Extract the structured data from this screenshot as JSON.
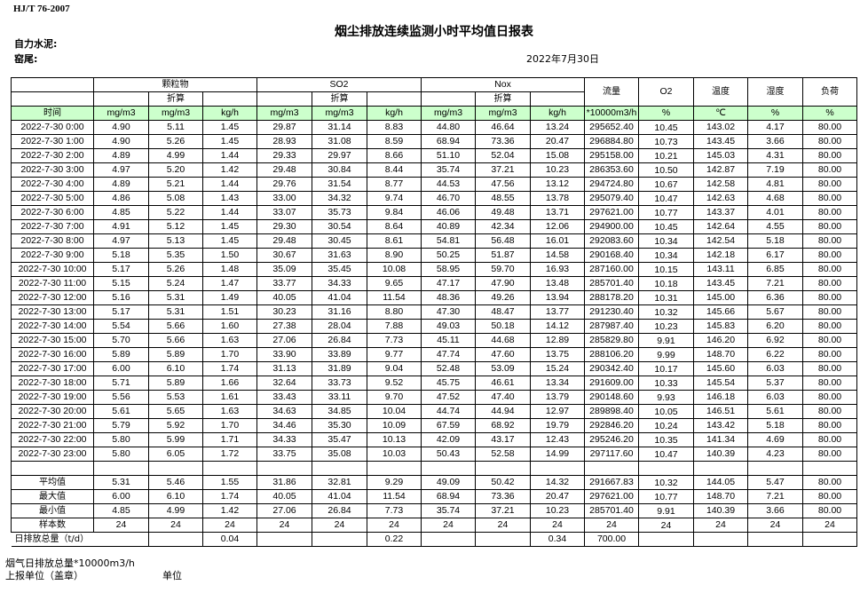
{
  "standard": "HJ/T  76-2007",
  "title": "烟尘排放连续监测小时平均值日报表",
  "company": "自力水泥:",
  "kiln": "窑尾:",
  "date": "2022年7月30日",
  "header": {
    "particulate": "颗粒物",
    "so2": "SO2",
    "nox": "Nox",
    "converted": "折算",
    "flow": "流量",
    "o2": "O2",
    "temperature": "温度",
    "humidity": "湿度",
    "load": "负荷",
    "units": [
      "时间",
      "mg/m3",
      "mg/m3",
      "kg/h",
      "mg/m3",
      "mg/m3",
      "kg/h",
      "mg/m3",
      "mg/m3",
      "kg/h",
      "*10000m3/h",
      "%",
      "℃",
      "%",
      "%"
    ]
  },
  "rows": [
    [
      "2022-7-30 0:00",
      "4.90",
      "5.11",
      "1.45",
      "29.87",
      "31.14",
      "8.83",
      "44.80",
      "46.64",
      "13.24",
      "295652.40",
      "10.45",
      "143.02",
      "4.17",
      "80.00"
    ],
    [
      "2022-7-30 1:00",
      "4.90",
      "5.26",
      "1.45",
      "28.93",
      "31.08",
      "8.59",
      "68.94",
      "73.36",
      "20.47",
      "296884.80",
      "10.73",
      "143.45",
      "3.66",
      "80.00"
    ],
    [
      "2022-7-30 2:00",
      "4.89",
      "4.99",
      "1.44",
      "29.33",
      "29.97",
      "8.66",
      "51.10",
      "52.04",
      "15.08",
      "295158.00",
      "10.21",
      "145.03",
      "4.31",
      "80.00"
    ],
    [
      "2022-7-30 3:00",
      "4.97",
      "5.20",
      "1.42",
      "29.48",
      "30.84",
      "8.44",
      "35.74",
      "37.21",
      "10.23",
      "286353.60",
      "10.50",
      "142.87",
      "7.19",
      "80.00"
    ],
    [
      "2022-7-30 4:00",
      "4.89",
      "5.21",
      "1.44",
      "29.76",
      "31.54",
      "8.77",
      "44.53",
      "47.56",
      "13.12",
      "294724.80",
      "10.67",
      "142.58",
      "4.81",
      "80.00"
    ],
    [
      "2022-7-30 5:00",
      "4.86",
      "5.08",
      "1.43",
      "33.00",
      "34.32",
      "9.74",
      "46.70",
      "48.55",
      "13.78",
      "295079.40",
      "10.47",
      "142.63",
      "4.68",
      "80.00"
    ],
    [
      "2022-7-30 6:00",
      "4.85",
      "5.22",
      "1.44",
      "33.07",
      "35.73",
      "9.84",
      "46.06",
      "49.48",
      "13.71",
      "297621.00",
      "10.77",
      "143.37",
      "4.01",
      "80.00"
    ],
    [
      "2022-7-30 7:00",
      "4.91",
      "5.12",
      "1.45",
      "29.30",
      "30.54",
      "8.64",
      "40.89",
      "42.34",
      "12.06",
      "294900.00",
      "10.45",
      "142.64",
      "4.55",
      "80.00"
    ],
    [
      "2022-7-30 8:00",
      "4.97",
      "5.13",
      "1.45",
      "29.48",
      "30.45",
      "8.61",
      "54.81",
      "56.48",
      "16.01",
      "292083.60",
      "10.34",
      "142.54",
      "5.18",
      "80.00"
    ],
    [
      "2022-7-30 9:00",
      "5.18",
      "5.35",
      "1.50",
      "30.67",
      "31.63",
      "8.90",
      "50.25",
      "51.87",
      "14.58",
      "290168.40",
      "10.34",
      "142.18",
      "6.17",
      "80.00"
    ],
    [
      "2022-7-30 10:00",
      "5.17",
      "5.26",
      "1.48",
      "35.09",
      "35.45",
      "10.08",
      "58.95",
      "59.70",
      "16.93",
      "287160.00",
      "10.15",
      "143.11",
      "6.85",
      "80.00"
    ],
    [
      "2022-7-30 11:00",
      "5.15",
      "5.24",
      "1.47",
      "33.77",
      "34.33",
      "9.65",
      "47.17",
      "47.90",
      "13.48",
      "285701.40",
      "10.18",
      "143.45",
      "7.21",
      "80.00"
    ],
    [
      "2022-7-30 12:00",
      "5.16",
      "5.31",
      "1.49",
      "40.05",
      "41.04",
      "11.54",
      "48.36",
      "49.26",
      "13.94",
      "288178.20",
      "10.31",
      "145.00",
      "6.36",
      "80.00"
    ],
    [
      "2022-7-30 13:00",
      "5.17",
      "5.31",
      "1.51",
      "30.23",
      "31.16",
      "8.80",
      "47.30",
      "48.47",
      "13.77",
      "291230.40",
      "10.32",
      "145.66",
      "5.67",
      "80.00"
    ],
    [
      "2022-7-30 14:00",
      "5.54",
      "5.66",
      "1.60",
      "27.38",
      "28.04",
      "7.88",
      "49.03",
      "50.18",
      "14.12",
      "287987.40",
      "10.23",
      "145.83",
      "6.20",
      "80.00"
    ],
    [
      "2022-7-30 15:00",
      "5.70",
      "5.66",
      "1.63",
      "27.06",
      "26.84",
      "7.73",
      "45.11",
      "44.68",
      "12.89",
      "285829.80",
      "9.91",
      "146.20",
      "6.92",
      "80.00"
    ],
    [
      "2022-7-30 16:00",
      "5.89",
      "5.89",
      "1.70",
      "33.90",
      "33.89",
      "9.77",
      "47.74",
      "47.60",
      "13.75",
      "288106.20",
      "9.99",
      "148.70",
      "6.22",
      "80.00"
    ],
    [
      "2022-7-30 17:00",
      "6.00",
      "6.10",
      "1.74",
      "31.13",
      "31.89",
      "9.04",
      "52.48",
      "53.09",
      "15.24",
      "290342.40",
      "10.17",
      "145.60",
      "6.03",
      "80.00"
    ],
    [
      "2022-7-30 18:00",
      "5.71",
      "5.89",
      "1.66",
      "32.64",
      "33.73",
      "9.52",
      "45.75",
      "46.61",
      "13.34",
      "291609.00",
      "10.33",
      "145.54",
      "5.37",
      "80.00"
    ],
    [
      "2022-7-30 19:00",
      "5.56",
      "5.53",
      "1.61",
      "33.43",
      "33.11",
      "9.70",
      "47.52",
      "47.40",
      "13.79",
      "290148.60",
      "9.93",
      "146.18",
      "6.03",
      "80.00"
    ],
    [
      "2022-7-30 20:00",
      "5.61",
      "5.65",
      "1.63",
      "34.63",
      "34.85",
      "10.04",
      "44.74",
      "44.94",
      "12.97",
      "289898.40",
      "10.05",
      "146.51",
      "5.61",
      "80.00"
    ],
    [
      "2022-7-30 21:00",
      "5.79",
      "5.92",
      "1.70",
      "34.46",
      "35.30",
      "10.09",
      "67.59",
      "68.92",
      "19.79",
      "292846.20",
      "10.24",
      "143.42",
      "5.18",
      "80.00"
    ],
    [
      "2022-7-30 22:00",
      "5.80",
      "5.99",
      "1.71",
      "34.33",
      "35.47",
      "10.13",
      "42.09",
      "43.17",
      "12.43",
      "295246.20",
      "10.35",
      "141.34",
      "4.69",
      "80.00"
    ],
    [
      "2022-7-30 23:00",
      "5.80",
      "6.05",
      "1.72",
      "33.75",
      "35.08",
      "10.03",
      "50.43",
      "52.58",
      "14.99",
      "297117.60",
      "10.47",
      "140.39",
      "4.23",
      "80.00"
    ]
  ],
  "summary": [
    [
      "平均值",
      "5.31",
      "5.46",
      "1.55",
      "31.86",
      "32.81",
      "9.29",
      "49.09",
      "50.42",
      "14.32",
      "291667.83",
      "10.32",
      "144.05",
      "5.47",
      "80.00"
    ],
    [
      "最大值",
      "6.00",
      "6.10",
      "1.74",
      "40.05",
      "41.04",
      "11.54",
      "68.94",
      "73.36",
      "20.47",
      "297621.00",
      "10.77",
      "148.70",
      "7.21",
      "80.00"
    ],
    [
      "最小值",
      "4.85",
      "4.99",
      "1.42",
      "27.06",
      "26.84",
      "7.73",
      "35.74",
      "37.21",
      "10.23",
      "285701.40",
      "9.91",
      "140.39",
      "3.66",
      "80.00"
    ],
    [
      "样本数",
      "24",
      "24",
      "24",
      "24",
      "24",
      "24",
      "24",
      "24",
      "24",
      "24",
      "24",
      "24",
      "24",
      "24"
    ]
  ],
  "daily_total": {
    "label": "日排放总量（t/d）",
    "particulate": "0.04",
    "so2": "0.22",
    "nox": "0.34",
    "flow": "700.00"
  },
  "footer": {
    "flue_gas_total": "烟气日排放总量*10000m3/h",
    "reporting_unit": "上报单位（盖章）",
    "unit": "单位"
  },
  "colors": {
    "units_row_bg": "#ccffcc"
  }
}
